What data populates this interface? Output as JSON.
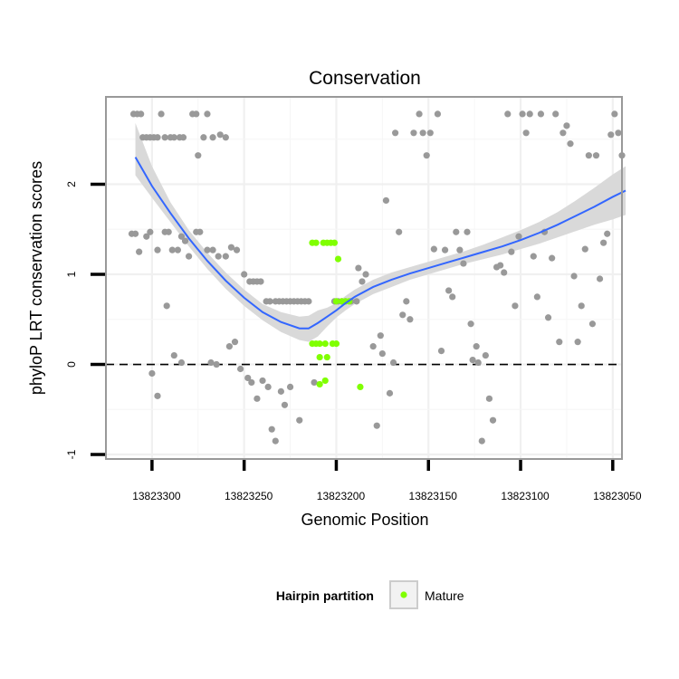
{
  "chart_data": {
    "type": "scatter",
    "title": "Conservation",
    "xlabel": "Genomic Position",
    "ylabel": "phyloP LRT conservation scores",
    "x_reversed": true,
    "xlim": [
      13823045,
      13823325
    ],
    "ylim": [
      -1.05,
      2.97
    ],
    "x_ticks": [
      13823300,
      13823250,
      13823200,
      13823150,
      13823100,
      13823050
    ],
    "x_tick_labels": [
      "13823300",
      "13823250",
      "13823200",
      "13823150",
      "13823100",
      "13823050"
    ],
    "y_ticks": [
      -1,
      0,
      1,
      2
    ],
    "y_tick_labels": [
      "-1",
      "0",
      "1",
      "2"
    ],
    "grid": true,
    "reference_line": {
      "y": 0,
      "style": "dashed"
    },
    "legend": {
      "title": "Hairpin partition",
      "position": "bottom",
      "entries": [
        "Mature"
      ]
    },
    "colors": {
      "background_points": "#999999",
      "mature": "#80ff00",
      "smooth": "#3366ff",
      "ribbon": "#d9d9d9",
      "panel_border": "#999999"
    },
    "series": [
      {
        "points": [
          [
            13823310,
            2.78
          ],
          [
            13823308,
            2.78
          ],
          [
            13823306,
            2.78
          ],
          [
            13823305,
            2.52
          ],
          [
            13823303,
            2.52
          ],
          [
            13823301,
            2.52
          ],
          [
            13823299,
            2.52
          ],
          [
            13823297,
            2.52
          ],
          [
            13823295,
            2.78
          ],
          [
            13823293,
            2.52
          ],
          [
            13823290,
            2.52
          ],
          [
            13823288,
            2.52
          ],
          [
            13823285,
            2.52
          ],
          [
            13823283,
            2.52
          ],
          [
            13823278,
            2.78
          ],
          [
            13823276,
            2.78
          ],
          [
            13823272,
            2.52
          ],
          [
            13823270,
            2.78
          ],
          [
            13823267,
            2.52
          ],
          [
            13823263,
            2.55
          ],
          [
            13823260,
            2.52
          ],
          [
            13823275,
            2.32
          ],
          [
            13823311,
            1.45
          ],
          [
            13823309,
            1.45
          ],
          [
            13823307,
            1.25
          ],
          [
            13823303,
            1.42
          ],
          [
            13823301,
            1.47
          ],
          [
            13823297,
            1.27
          ],
          [
            13823293,
            1.47
          ],
          [
            13823291,
            1.47
          ],
          [
            13823289,
            1.27
          ],
          [
            13823286,
            1.27
          ],
          [
            13823284,
            1.42
          ],
          [
            13823282,
            1.37
          ],
          [
            13823280,
            1.2
          ],
          [
            13823276,
            1.47
          ],
          [
            13823274,
            1.47
          ],
          [
            13823270,
            1.27
          ],
          [
            13823267,
            1.27
          ],
          [
            13823264,
            1.2
          ],
          [
            13823260,
            1.2
          ],
          [
            13823257,
            1.3
          ],
          [
            13823254,
            1.27
          ],
          [
            13823250,
            1.0
          ],
          [
            13823247,
            0.92
          ],
          [
            13823245,
            0.92
          ],
          [
            13823243,
            0.92
          ],
          [
            13823241,
            0.92
          ],
          [
            13823238,
            0.7
          ],
          [
            13823236,
            0.7
          ],
          [
            13823233,
            0.7
          ],
          [
            13823231,
            0.7
          ],
          [
            13823229,
            0.7
          ],
          [
            13823227,
            0.7
          ],
          [
            13823225,
            0.7
          ],
          [
            13823223,
            0.7
          ],
          [
            13823221,
            0.7
          ],
          [
            13823219,
            0.7
          ],
          [
            13823217,
            0.7
          ],
          [
            13823215,
            0.7
          ],
          [
            13823292,
            0.65
          ],
          [
            13823284,
            0.02
          ],
          [
            13823288,
            0.1
          ],
          [
            13823297,
            -0.35
          ],
          [
            13823300,
            -0.1
          ],
          [
            13823268,
            0.02
          ],
          [
            13823265,
            0.0
          ],
          [
            13823258,
            0.2
          ],
          [
            13823255,
            0.25
          ],
          [
            13823252,
            -0.05
          ],
          [
            13823248,
            -0.15
          ],
          [
            13823246,
            -0.2
          ],
          [
            13823243,
            -0.38
          ],
          [
            13823240,
            -0.18
          ],
          [
            13823237,
            -0.25
          ],
          [
            13823235,
            -0.72
          ],
          [
            13823233,
            -0.85
          ],
          [
            13823230,
            -0.3
          ],
          [
            13823228,
            -0.45
          ],
          [
            13823225,
            -0.25
          ],
          [
            13823220,
            -0.62
          ],
          [
            13823212,
            -0.2
          ],
          [
            13823201,
            0.7
          ],
          [
            13823199,
            0.7
          ],
          [
            13823197,
            0.7
          ],
          [
            13823195,
            0.7
          ],
          [
            13823192,
            0.7
          ],
          [
            13823189,
            0.7
          ],
          [
            13823188,
            1.07
          ],
          [
            13823186,
            0.92
          ],
          [
            13823184,
            1.0
          ],
          [
            13823180,
            0.2
          ],
          [
            13823178,
            -0.68
          ],
          [
            13823176,
            0.32
          ],
          [
            13823175,
            0.12
          ],
          [
            13823173,
            1.82
          ],
          [
            13823171,
            -0.32
          ],
          [
            13823169,
            0.02
          ],
          [
            13823168,
            2.57
          ],
          [
            13823166,
            1.47
          ],
          [
            13823164,
            0.55
          ],
          [
            13823162,
            0.7
          ],
          [
            13823160,
            0.5
          ],
          [
            13823158,
            2.57
          ],
          [
            13823155,
            2.78
          ],
          [
            13823153,
            2.57
          ],
          [
            13823151,
            2.32
          ],
          [
            13823149,
            2.57
          ],
          [
            13823147,
            1.28
          ],
          [
            13823145,
            2.78
          ],
          [
            13823143,
            0.15
          ],
          [
            13823141,
            1.27
          ],
          [
            13823139,
            0.82
          ],
          [
            13823137,
            0.75
          ],
          [
            13823135,
            1.47
          ],
          [
            13823133,
            1.27
          ],
          [
            13823131,
            1.12
          ],
          [
            13823129,
            1.47
          ],
          [
            13823127,
            0.45
          ],
          [
            13823126,
            0.05
          ],
          [
            13823124,
            0.2
          ],
          [
            13823123,
            0.02
          ],
          [
            13823121,
            -0.85
          ],
          [
            13823119,
            0.1
          ],
          [
            13823117,
            -0.38
          ],
          [
            13823115,
            -0.62
          ],
          [
            13823113,
            1.08
          ],
          [
            13823111,
            1.1
          ],
          [
            13823109,
            1.02
          ],
          [
            13823107,
            2.78
          ],
          [
            13823105,
            1.25
          ],
          [
            13823103,
            0.65
          ],
          [
            13823101,
            1.42
          ],
          [
            13823099,
            2.78
          ],
          [
            13823097,
            2.57
          ],
          [
            13823095,
            2.78
          ],
          [
            13823093,
            1.2
          ],
          [
            13823091,
            0.75
          ],
          [
            13823089,
            2.78
          ],
          [
            13823087,
            1.47
          ],
          [
            13823085,
            0.52
          ],
          [
            13823083,
            1.18
          ],
          [
            13823081,
            2.78
          ],
          [
            13823079,
            0.25
          ],
          [
            13823077,
            2.57
          ],
          [
            13823075,
            2.65
          ],
          [
            13823073,
            2.45
          ],
          [
            13823071,
            0.98
          ],
          [
            13823069,
            0.25
          ],
          [
            13823067,
            0.65
          ],
          [
            13823065,
            1.28
          ],
          [
            13823063,
            2.32
          ],
          [
            13823061,
            0.45
          ],
          [
            13823059,
            2.32
          ],
          [
            13823057,
            0.95
          ],
          [
            13823055,
            1.35
          ],
          [
            13823053,
            1.45
          ],
          [
            13823051,
            2.55
          ],
          [
            13823049,
            2.78
          ],
          [
            13823047,
            2.57
          ],
          [
            13823045,
            2.32
          ]
        ],
        "color": "#999999"
      },
      {
        "name": "Mature",
        "points": [
          [
            13823213,
            1.35
          ],
          [
            13823211,
            1.35
          ],
          [
            13823207,
            1.35
          ],
          [
            13823205,
            1.35
          ],
          [
            13823203,
            1.35
          ],
          [
            13823201,
            1.35
          ],
          [
            13823199,
            1.17
          ],
          [
            13823213,
            0.23
          ],
          [
            13823211,
            0.23
          ],
          [
            13823209,
            0.23
          ],
          [
            13823206,
            0.23
          ],
          [
            13823202,
            0.23
          ],
          [
            13823200,
            0.23
          ],
          [
            13823209,
            0.08
          ],
          [
            13823205,
            0.08
          ],
          [
            13823209,
            -0.22
          ],
          [
            13823206,
            -0.18
          ],
          [
            13823187,
            -0.25
          ],
          [
            13823200,
            0.7
          ],
          [
            13823197,
            0.7
          ],
          [
            13823195,
            0.7
          ],
          [
            13823193,
            0.7
          ]
        ],
        "color": "#80ff00"
      }
    ],
    "smooth": {
      "x": [
        13823309,
        13823300,
        13823290,
        13823280,
        13823270,
        13823260,
        13823250,
        13823240,
        13823230,
        13823220,
        13823215,
        13823210,
        13823205,
        13823200,
        13823195,
        13823190,
        13823180,
        13823170,
        13823160,
        13823150,
        13823140,
        13823130,
        13823120,
        13823110,
        13823100,
        13823090,
        13823080,
        13823070,
        13823060,
        13823050,
        13823043
      ],
      "y": [
        2.3,
        1.98,
        1.68,
        1.4,
        1.15,
        0.93,
        0.74,
        0.58,
        0.47,
        0.4,
        0.4,
        0.46,
        0.53,
        0.6,
        0.68,
        0.75,
        0.86,
        0.94,
        1.01,
        1.07,
        1.13,
        1.19,
        1.25,
        1.31,
        1.38,
        1.46,
        1.55,
        1.65,
        1.75,
        1.86,
        1.93
      ],
      "lower": [
        2.1,
        1.85,
        1.58,
        1.31,
        1.06,
        0.84,
        0.65,
        0.49,
        0.36,
        0.27,
        0.25,
        0.31,
        0.42,
        0.52,
        0.6,
        0.67,
        0.78,
        0.86,
        0.94,
        1.0,
        1.06,
        1.12,
        1.17,
        1.22,
        1.28,
        1.34,
        1.41,
        1.48,
        1.55,
        1.61,
        1.66
      ],
      "upper": [
        2.68,
        2.2,
        1.8,
        1.49,
        1.24,
        1.02,
        0.83,
        0.67,
        0.58,
        0.53,
        0.54,
        0.6,
        0.63,
        0.68,
        0.76,
        0.83,
        0.94,
        1.02,
        1.08,
        1.14,
        1.2,
        1.26,
        1.33,
        1.41,
        1.49,
        1.58,
        1.69,
        1.82,
        1.96,
        2.11,
        2.2
      ],
      "color": "#3366ff"
    }
  }
}
